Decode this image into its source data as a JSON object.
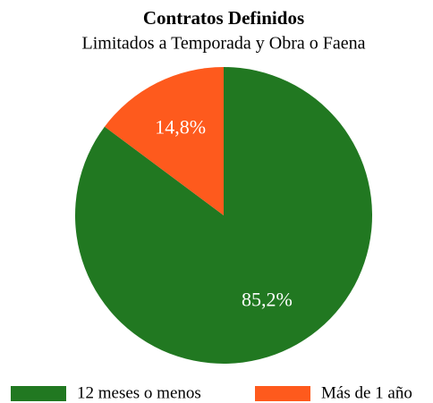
{
  "chart_data": {
    "type": "pie",
    "title": "Contratos Definidos",
    "subtitle": "Limitados a Temporada y Obra o Faena",
    "categories": [
      "12 meses o menos",
      "Más de 1 año"
    ],
    "values": [
      85.2,
      14.8
    ],
    "value_labels": [
      "85,2%",
      "14,8%"
    ],
    "colors": [
      "#217821",
      "#fe5a1d"
    ],
    "legend": "bottom"
  }
}
